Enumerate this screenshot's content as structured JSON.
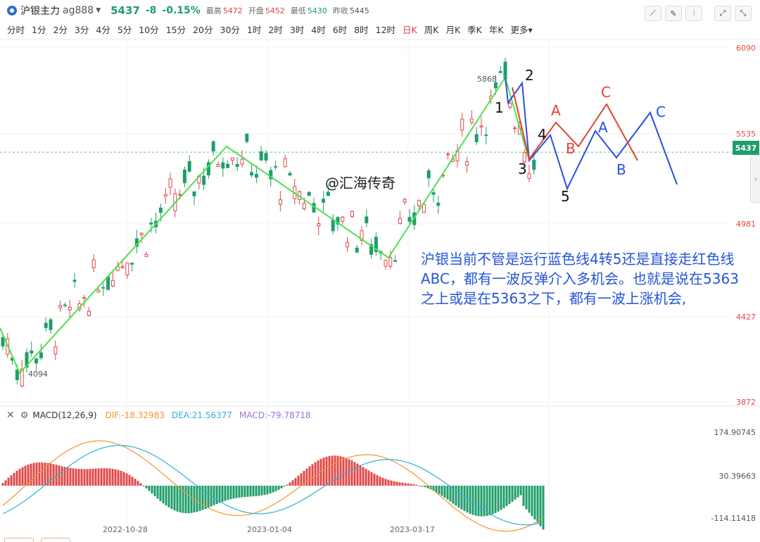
{
  "header": {
    "symbol_name": "沪银主力",
    "symbol_code": "ag888",
    "price": "5437",
    "change": "-8",
    "change_pct": "-0.15%",
    "stats": [
      {
        "label": "最高",
        "value": "5472",
        "color": "#e04848"
      },
      {
        "label": "开盘",
        "value": "5452",
        "color": "#e04848"
      },
      {
        "label": "最低",
        "value": "5430",
        "color": "#1f9e6a"
      },
      {
        "label": "昨收",
        "value": "5445",
        "color": "#555555"
      }
    ],
    "tool_icons": [
      "draw-line-icon",
      "pen-icon",
      "settings-sliders-icon",
      "fullscreen-icon",
      "expand-icon"
    ]
  },
  "periods": [
    "分时",
    "1分",
    "2分",
    "3分",
    "4分",
    "5分",
    "10分",
    "15分",
    "20分",
    "30分",
    "1时",
    "2时",
    "3时",
    "4时",
    "6时",
    "8时",
    "12时",
    "日K",
    "周K",
    "月K",
    "季K",
    "年K",
    "更多"
  ],
  "active_period": "日K",
  "price_axis": {
    "labels": [
      "6090",
      "5535",
      "4981",
      "4427",
      "3872"
    ]
  },
  "current_price_tag": "5437",
  "chart_annotations": {
    "high_label": "5868",
    "low_label": "4094",
    "watermark": "@汇海传奇",
    "wave_numbers": [
      "1",
      "2",
      "3",
      "4",
      "5"
    ],
    "red_wave": [
      "A",
      "B",
      "C"
    ],
    "blue_wave": [
      "A",
      "B",
      "C"
    ],
    "analysis_text": "沪银当前不管是运行蓝色线4转5还是直接走红色线ABC，都有一波反弹介入多机会。也就是说在5363之上或是在5363之下，都有一波上涨机会,"
  },
  "macd": {
    "name": "MACD(12,26,9)",
    "dif": "DIF:-18.32983",
    "dea": "DEA:21.56377",
    "macd": "MACD:-79.78718",
    "axis_labels": [
      "174.90745",
      "30.39663",
      "-114.11418"
    ]
  },
  "dates": [
    "2022-10-28",
    "2023-01-04",
    "2023-03-17"
  ],
  "colors": {
    "up": "#e04848",
    "down": "#1f9e6a",
    "wave_green": "#4fe04f",
    "wave_blue": "#2a4fe0",
    "wave_red": "#e0432f",
    "dif": "#f2942f",
    "dea": "#2fb1d6"
  }
}
